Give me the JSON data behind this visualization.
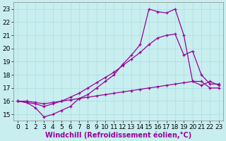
{
  "background_color": "#c8eef0",
  "line_color": "#990099",
  "grid_color": "#aadddd",
  "xlabel": "Windchill (Refroidissement éolien,°C)",
  "xlabel_fontsize": 7,
  "tick_fontsize": 6.5,
  "xlim_min": -0.5,
  "xlim_max": 23.5,
  "ylim_min": 14.5,
  "ylim_max": 23.5,
  "xticks": [
    0,
    1,
    2,
    3,
    4,
    5,
    6,
    7,
    8,
    9,
    10,
    11,
    12,
    13,
    14,
    15,
    16,
    17,
    18,
    19,
    20,
    21,
    22,
    23
  ],
  "yticks": [
    15,
    16,
    17,
    18,
    19,
    20,
    21,
    22,
    23
  ],
  "line1_x": [
    0,
    1,
    2,
    3,
    4,
    5,
    6,
    7,
    8,
    9,
    10,
    11,
    12,
    13,
    14,
    15,
    16,
    17,
    18,
    19,
    20,
    21,
    22,
    23
  ],
  "line1_y": [
    16.0,
    15.9,
    15.5,
    14.8,
    15.0,
    15.3,
    15.6,
    16.2,
    16.5,
    17.0,
    17.5,
    18.0,
    18.8,
    19.5,
    20.3,
    23.0,
    22.8,
    22.7,
    23.0,
    21.0,
    17.5,
    17.2,
    17.5,
    17.2
  ],
  "line2_x": [
    0,
    1,
    2,
    3,
    4,
    5,
    6,
    7,
    8,
    9,
    10,
    11,
    12,
    13,
    14,
    15,
    16,
    17,
    18,
    19,
    20,
    21,
    22,
    23
  ],
  "line2_y": [
    16.0,
    15.9,
    15.8,
    15.6,
    15.8,
    16.0,
    16.3,
    16.6,
    17.0,
    17.4,
    17.8,
    18.2,
    18.7,
    19.2,
    19.7,
    20.3,
    20.8,
    21.0,
    21.1,
    19.5,
    19.8,
    18.0,
    17.3,
    17.3
  ],
  "line3_x": [
    0,
    1,
    2,
    3,
    4,
    5,
    6,
    7,
    8,
    9,
    10,
    11,
    12,
    13,
    14,
    15,
    16,
    17,
    18,
    19,
    20,
    21,
    22,
    23
  ],
  "line3_y": [
    16.0,
    16.0,
    15.9,
    15.8,
    15.9,
    16.0,
    16.1,
    16.2,
    16.3,
    16.4,
    16.5,
    16.6,
    16.7,
    16.8,
    16.9,
    17.0,
    17.1,
    17.2,
    17.3,
    17.4,
    17.5,
    17.5,
    17.0,
    17.0
  ]
}
